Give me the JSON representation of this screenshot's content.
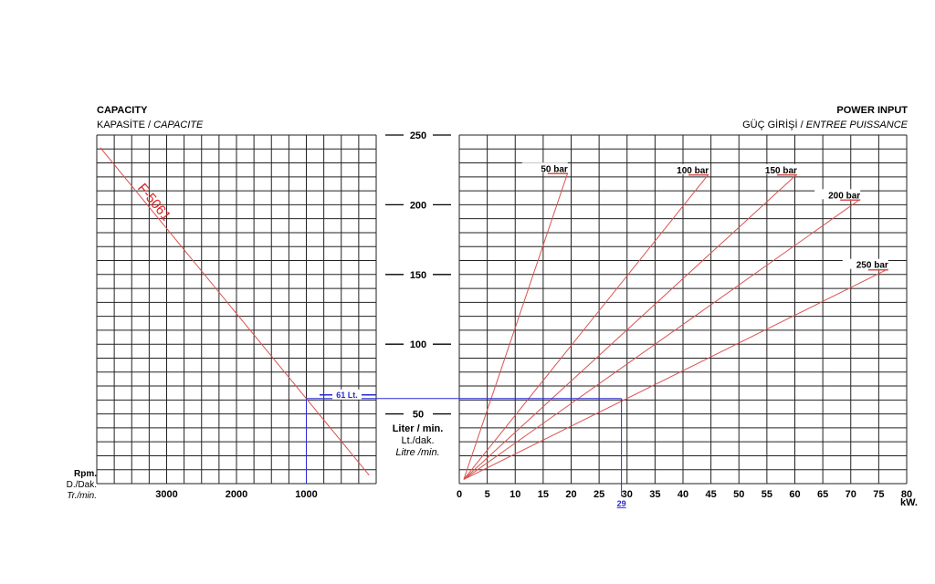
{
  "chart_data": [
    {
      "type": "line",
      "title": "CAPACITY",
      "subtitle_tr": "KAPASİTE",
      "subtitle_fr": "CAPACITE",
      "xlabel": [
        "Rpm.",
        "D./Dak.",
        "Tr./min."
      ],
      "ylabel": [
        "Liter / min.",
        "Lt./dak.",
        "Litre /min."
      ],
      "x_reversed": true,
      "xlim": [
        0,
        4000
      ],
      "ylim": [
        0,
        250
      ],
      "x_ticks": [
        3000,
        2000,
        1000
      ],
      "y_ticks": [
        250,
        200,
        150,
        100,
        50
      ],
      "grid": true,
      "series": [
        {
          "name": "F-5061",
          "color": "#d9534f",
          "points": [
            [
              3950,
              241
            ],
            [
              100,
              6
            ]
          ]
        }
      ]
    },
    {
      "type": "line",
      "title": "POWER INPUT",
      "subtitle_tr": "GÜÇ GİRİŞİ",
      "subtitle_fr": "ENTREE PUISSANCE",
      "xlabel": "kW.",
      "xlim": [
        0,
        80
      ],
      "ylim": [
        0,
        250
      ],
      "x_ticks": [
        0,
        5,
        10,
        15,
        20,
        25,
        30,
        35,
        40,
        45,
        50,
        55,
        60,
        65,
        70,
        75,
        80
      ],
      "grid": true,
      "series": [
        {
          "name": "50 bar",
          "color": "#d9534f",
          "points": [
            [
              0.8,
              3
            ],
            [
              19.4,
              223
            ]
          ]
        },
        {
          "name": "100 bar",
          "color": "#d9534f",
          "points": [
            [
              0.8,
              3
            ],
            [
              44.6,
              222
            ]
          ]
        },
        {
          "name": "150 bar",
          "color": "#d9534f",
          "points": [
            [
              0.8,
              3
            ],
            [
              60.4,
              222
            ]
          ]
        },
        {
          "name": "200 bar",
          "color": "#d9534f",
          "points": [
            [
              0.8,
              3
            ],
            [
              71.7,
              204
            ]
          ]
        },
        {
          "name": "250 bar",
          "color": "#d9534f",
          "points": [
            [
              0.8,
              3
            ],
            [
              76.7,
              154
            ]
          ]
        }
      ]
    }
  ],
  "annotation": {
    "color": "#2a2ad0",
    "rpm": 1000,
    "flow": 61,
    "flow_label": "61 Lt.",
    "power": 29,
    "power_label": "29"
  }
}
